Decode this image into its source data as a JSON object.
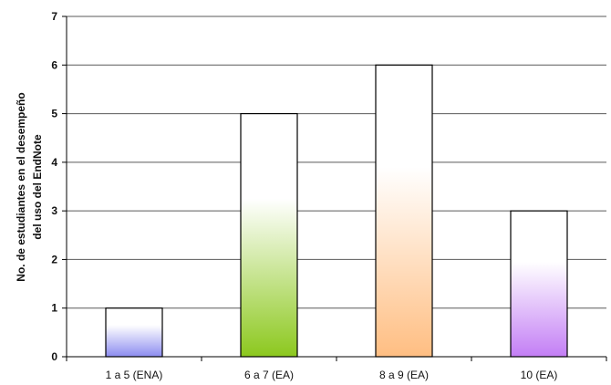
{
  "chart_data": {
    "type": "bar",
    "categories": [
      "1 a 5 (ENA)",
      "6 a 7 (EA)",
      "8 a 9 (EA)",
      "10 (EA)"
    ],
    "values": [
      1,
      5,
      6,
      3
    ],
    "title": "",
    "xlabel": "",
    "ylabel_lines": [
      "No. de estudiantes en el desempeño",
      "del uso del EndNote"
    ],
    "ylim": [
      0,
      7
    ],
    "yticks": [
      0,
      1,
      2,
      3,
      4,
      5,
      6,
      7
    ],
    "grid": true,
    "legend": "none",
    "bar_colors": [
      "#8c8cf0",
      "#8cc81e",
      "#ffbe82",
      "#c37ef5"
    ]
  }
}
